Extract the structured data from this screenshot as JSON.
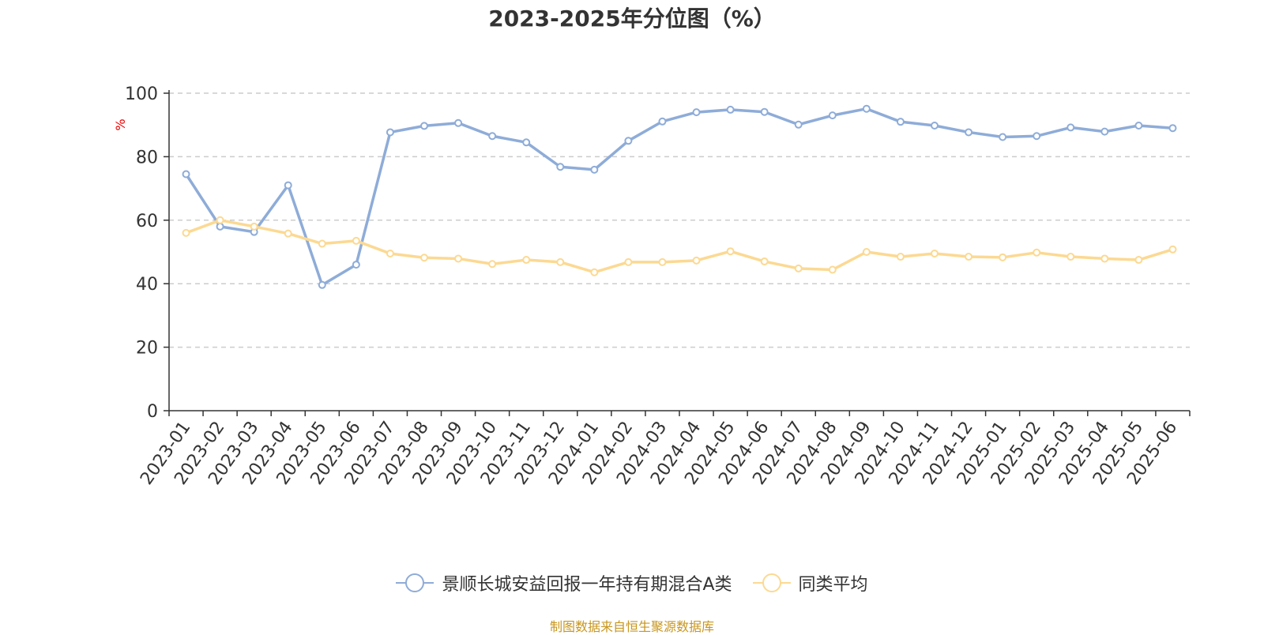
{
  "chart_data": {
    "type": "line",
    "title": "2023-2025年分位图（%）",
    "ylabel": "%",
    "ylim": [
      0,
      100
    ],
    "yticks": [
      0,
      20,
      40,
      60,
      80,
      100
    ],
    "grid": true,
    "legend_position": "bottom",
    "categories": [
      "2023-01",
      "2023-02",
      "2023-03",
      "2023-04",
      "2023-05",
      "2023-06",
      "2023-07",
      "2023-08",
      "2023-09",
      "2023-10",
      "2023-11",
      "2023-12",
      "2024-01",
      "2024-02",
      "2024-03",
      "2024-04",
      "2024-05",
      "2024-06",
      "2024-07",
      "2024-08",
      "2024-09",
      "2024-10",
      "2024-11",
      "2024-12",
      "2025-01",
      "2025-02",
      "2025-03",
      "2025-04",
      "2025-05",
      "2025-06"
    ],
    "series": [
      {
        "name": "景顺长城安益回报一年持有期混合A类",
        "color": "#8eacd8",
        "values": [
          74.5,
          58,
          56.3,
          71,
          39.6,
          46,
          87.7,
          89.7,
          90.6,
          86.5,
          84.5,
          76.8,
          75.9,
          85,
          91.1,
          94,
          94.8,
          94.1,
          90.1,
          93,
          95.1,
          91,
          89.8,
          87.7,
          86.2,
          86.5,
          89.2,
          87.9,
          89.8,
          89
        ]
      },
      {
        "name": "同类平均",
        "color": "#fcd992",
        "values": [
          56,
          60,
          58,
          55.8,
          52.6,
          53.5,
          49.5,
          48.2,
          47.9,
          46.2,
          47.5,
          46.8,
          43.6,
          46.8,
          46.8,
          47.3,
          50.2,
          47,
          44.8,
          44.4,
          50,
          48.5,
          49.5,
          48.5,
          48.3,
          49.8,
          48.5,
          47.9,
          47.5,
          50.8
        ]
      }
    ]
  },
  "footer": {
    "source": "制图数据来自恒生聚源数据库",
    "source_color": "#c8961e"
  }
}
